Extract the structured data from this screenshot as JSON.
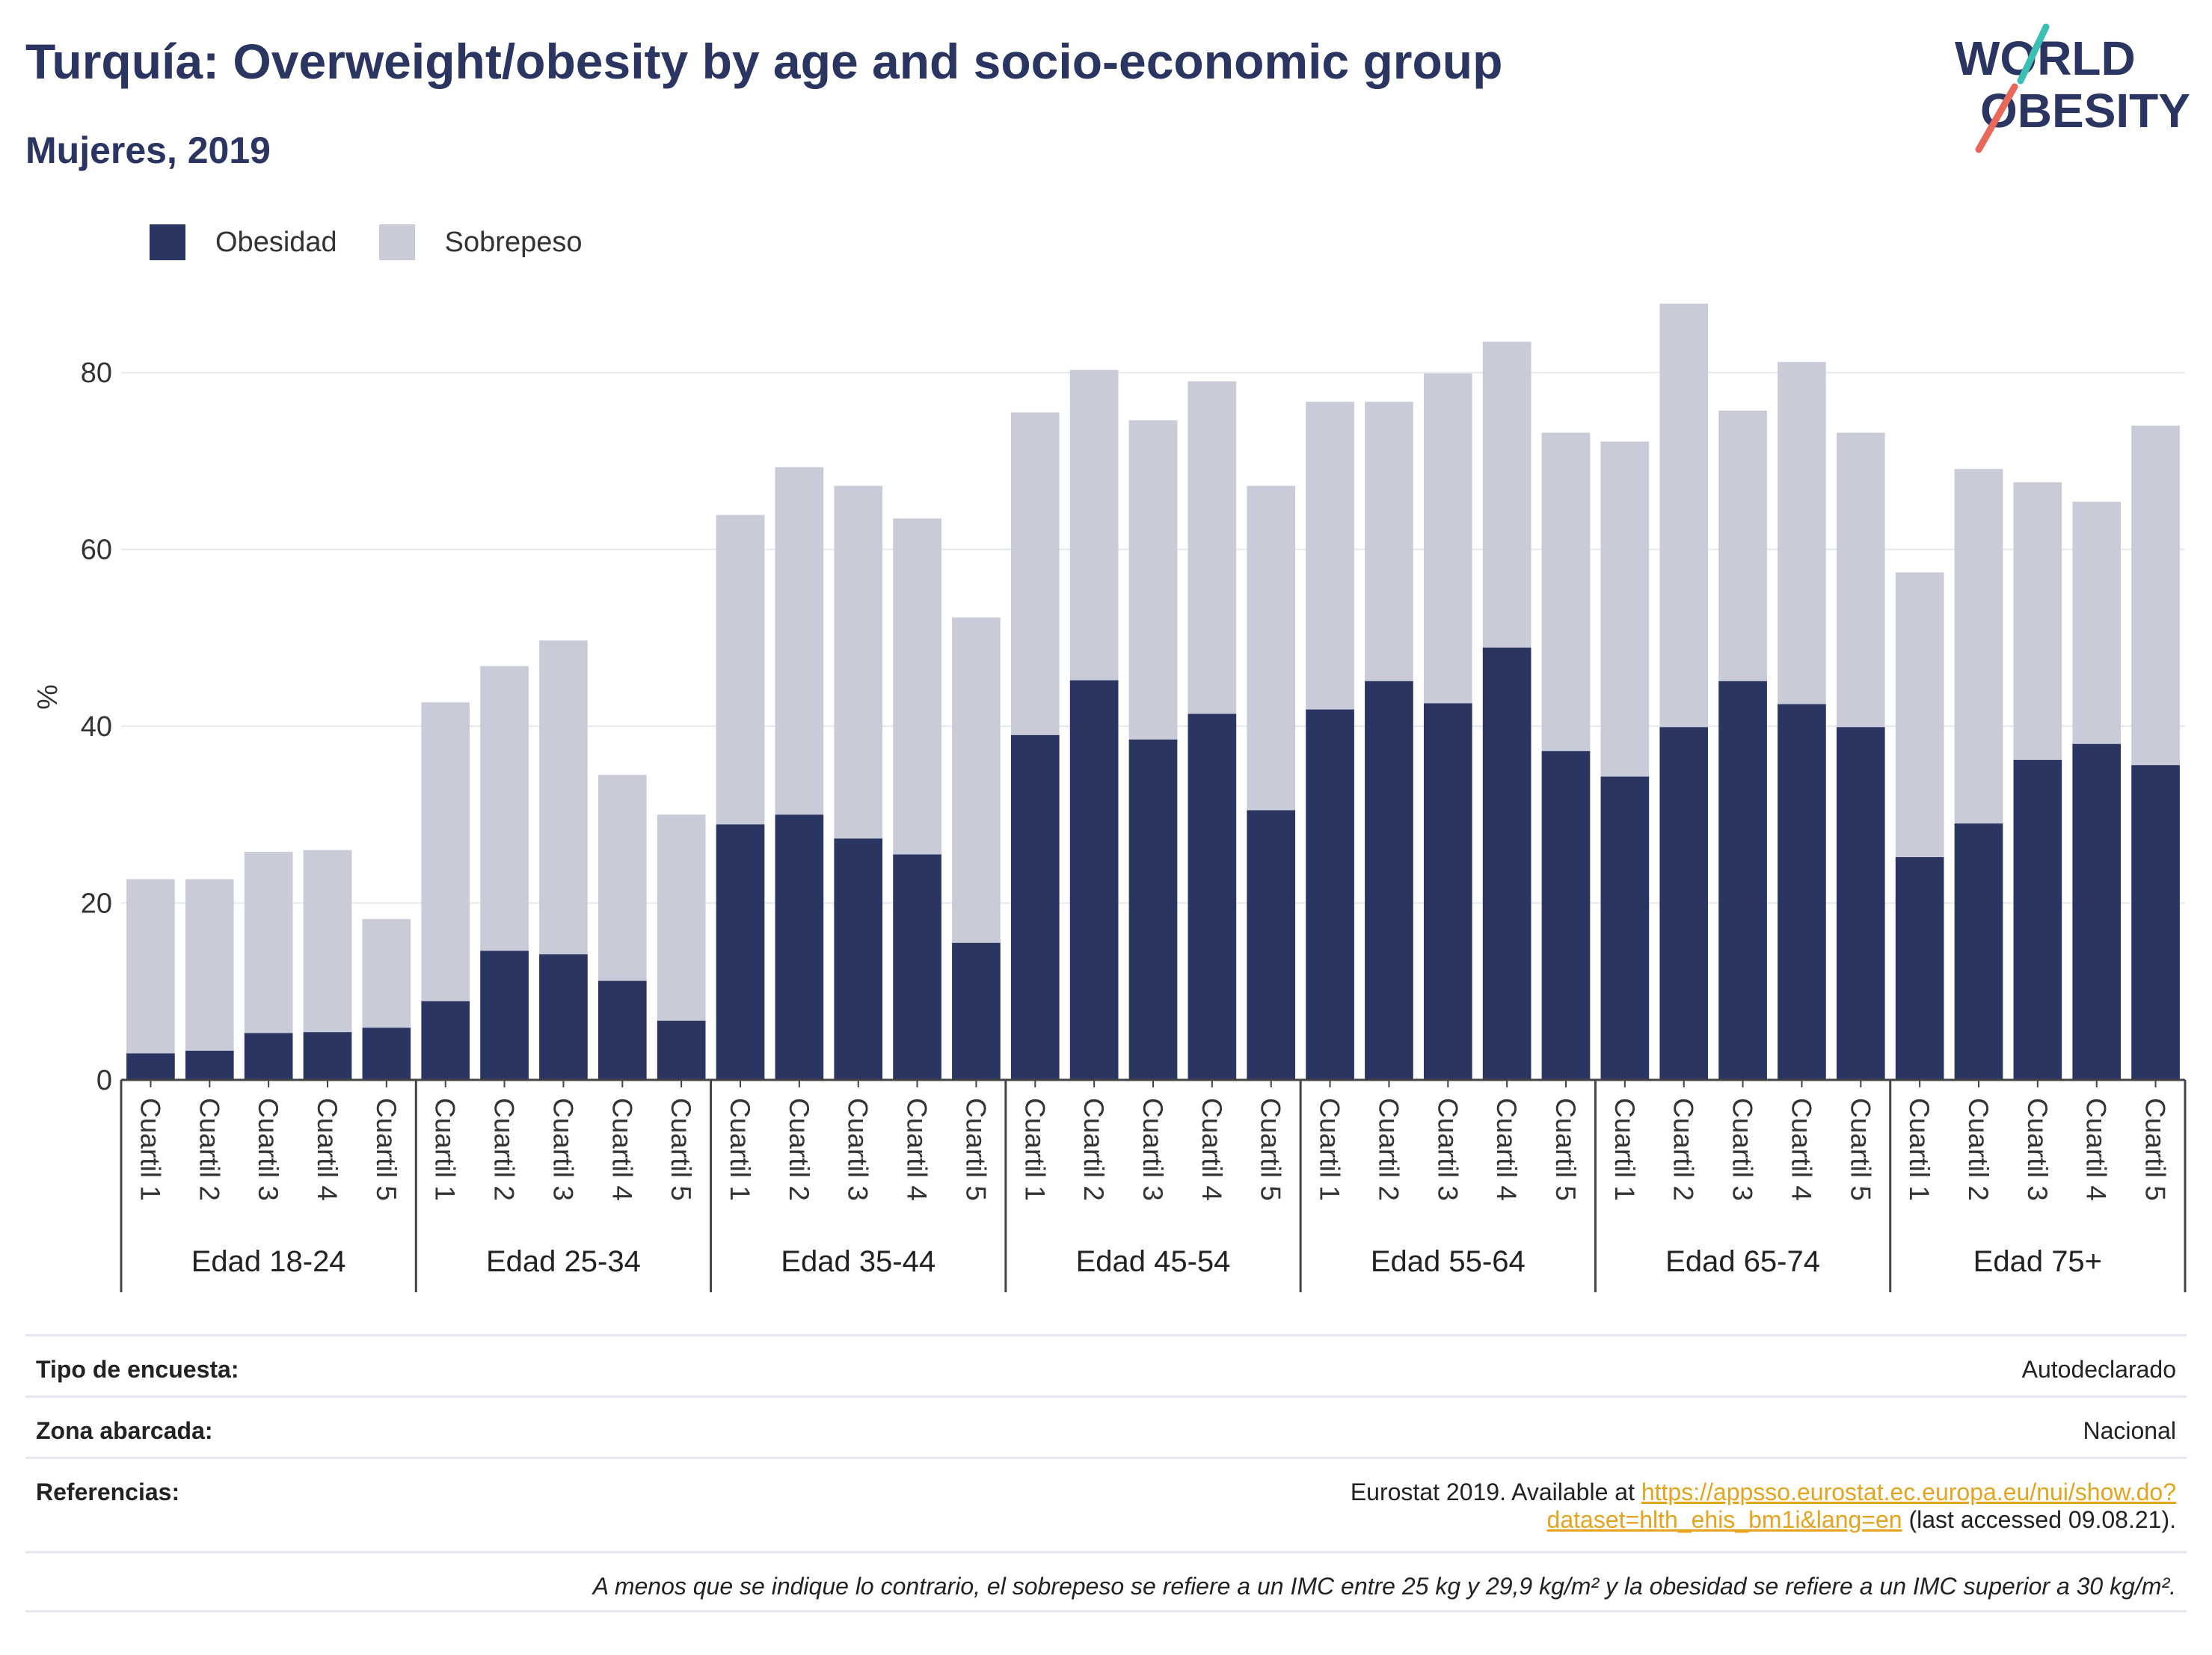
{
  "header": {
    "title": "Turquía: Overweight/obesity by age and socio-economic group",
    "subtitle": "Mujeres, 2019"
  },
  "logo": {
    "line1": "WORLD",
    "line2": "OBESITY",
    "accent1": "#3bbfb3",
    "accent2": "#e8685a",
    "text_color": "#2a3562"
  },
  "chart_data": {
    "type": "bar",
    "stacked": true,
    "ylabel": "%",
    "ylim": [
      0,
      90
    ],
    "yticks": [
      0,
      20,
      40,
      60,
      80
    ],
    "grid": true,
    "legend_position": "top-left",
    "groups": [
      "Edad 18-24",
      "Edad 25-34",
      "Edad 35-44",
      "Edad 45-54",
      "Edad 55-64",
      "Edad 65-74",
      "Edad 75+"
    ],
    "sub_categories": [
      "Cuartil 1",
      "Cuartil 2",
      "Cuartil 3",
      "Cuartil 4",
      "Cuartil 5"
    ],
    "series": [
      {
        "name": "Obesidad",
        "color": "#2a3562",
        "values": [
          3.0,
          3.3,
          5.3,
          5.4,
          5.9,
          8.9,
          14.6,
          14.2,
          11.2,
          6.7,
          28.9,
          30.0,
          27.3,
          25.5,
          15.5,
          39.0,
          45.2,
          38.5,
          41.4,
          30.5,
          41.9,
          45.1,
          42.6,
          48.9,
          37.2,
          34.3,
          39.9,
          45.1,
          42.5,
          39.9,
          25.2,
          29.0,
          36.2,
          38.0,
          35.6
        ]
      },
      {
        "name": "Sobrepeso",
        "color": "#c9ccd8",
        "values": [
          19.7,
          19.4,
          20.5,
          20.6,
          12.3,
          33.8,
          32.2,
          35.5,
          23.3,
          23.3,
          35.0,
          39.3,
          39.9,
          38.0,
          36.8,
          36.5,
          35.1,
          36.1,
          37.6,
          36.7,
          34.8,
          31.6,
          37.3,
          34.6,
          36.0,
          37.9,
          47.9,
          30.6,
          38.7,
          33.3,
          32.2,
          40.1,
          31.4,
          27.4,
          38.4
        ]
      }
    ]
  },
  "info": {
    "survey_label": "Tipo de encuesta:",
    "survey_value": "Autodeclarado",
    "area_label": "Zona abarcada:",
    "area_value": "Nacional",
    "ref_label": "Referencias:",
    "ref_prefix": "Eurostat 2019. Available at ",
    "ref_link": "https://appsso.eurostat.ec.europa.eu/nui/show.do?dataset=hlth_ehis_bm1i&lang=en",
    "ref_suffix": " (last accessed 09.08.21).",
    "footnote": "A menos que se indique lo contrario, el sobrepeso se refiere a un IMC entre 25 kg y 29,9 kg/m² y la obesidad se refiere a un IMC superior a 30 kg/m²."
  }
}
